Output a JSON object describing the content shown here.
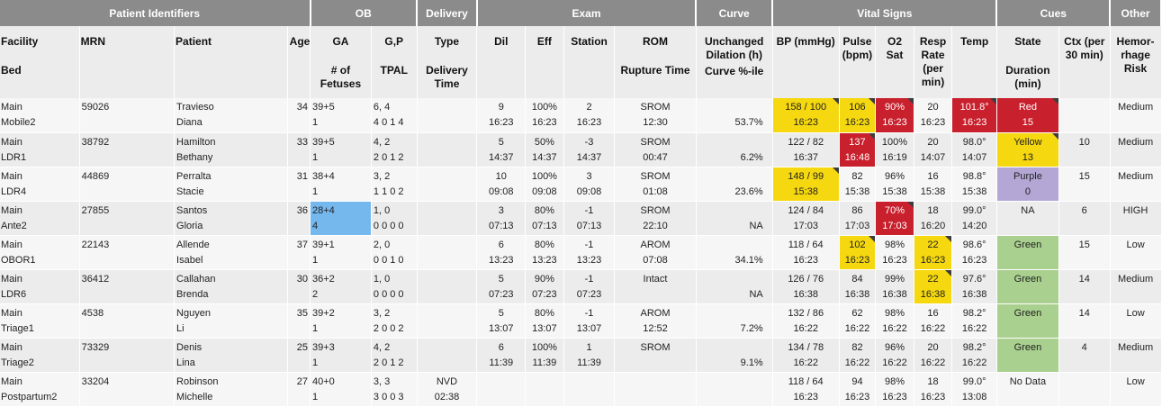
{
  "groups": [
    {
      "label": "Patient Identifiers"
    },
    {
      "label": "OB"
    },
    {
      "label": "Delivery"
    },
    {
      "label": "Exam"
    },
    {
      "label": "Curve"
    },
    {
      "label": "Vital Signs"
    },
    {
      "label": "Cues"
    },
    {
      "label": "Other"
    }
  ],
  "columns": {
    "facility": {
      "line1": "Facility",
      "line2": "Bed"
    },
    "mrn": {
      "line1": "MRN"
    },
    "patient": {
      "line1": "Patient"
    },
    "age": {
      "line1": "Age"
    },
    "ga": {
      "line1": "GA",
      "line2": "# of Fetuses"
    },
    "gp": {
      "line1": "G,P",
      "line2": "TPAL"
    },
    "type": {
      "line1": "Type",
      "line2": "Delivery Time"
    },
    "dil": {
      "line1": "Dil"
    },
    "eff": {
      "line1": "Eff"
    },
    "station": {
      "line1": "Station"
    },
    "rom": {
      "line1": "ROM",
      "line2": "Rupture Time"
    },
    "curve": {
      "line1": "Unchanged Dilation (h)",
      "line2": "Curve %-ile"
    },
    "bp": {
      "line1": "BP (mmHg)"
    },
    "pulse": {
      "line1": "Pulse (bpm)"
    },
    "o2": {
      "line1": "O2 Sat"
    },
    "resp": {
      "line1": "Resp Rate (per min)"
    },
    "temp": {
      "line1": "Temp"
    },
    "state": {
      "line1": "State",
      "line2": "Duration (min)"
    },
    "ctx": {
      "line1": "Ctx (per 30 min)"
    },
    "hemo": {
      "line1": "Hemor-rhage Risk"
    }
  },
  "patients": [
    {
      "facility": "Main",
      "bed": "Mobile2",
      "mrn": "59026",
      "last": "Travieso",
      "first": "Diana",
      "age": "34",
      "ga": "39+5",
      "fetuses": "1",
      "gp": "6, 4",
      "tpal": "4 0 1 4",
      "type": "",
      "delivery_time": "",
      "dil": "9",
      "dil_time": "16:23",
      "eff": "100%",
      "eff_time": "16:23",
      "station": "2",
      "station_time": "16:23",
      "rom": "SROM",
      "rom_time": "12:30",
      "unchanged": "",
      "curve": "53.7%",
      "bp": "158 / 100",
      "bp_time": "16:23",
      "pulse": "106",
      "pulse_time": "16:23",
      "o2": "90%",
      "o2_time": "16:23",
      "resp": "20",
      "resp_time": "16:23",
      "temp": "101.8°",
      "temp_time": "16:23",
      "state": "Red",
      "duration": "15",
      "ctx": "",
      "hemo": "Medium"
    },
    {
      "facility": "Main",
      "bed": "LDR1",
      "mrn": "38792",
      "last": "Hamilton",
      "first": "Bethany",
      "age": "33",
      "ga": "39+5",
      "fetuses": "1",
      "gp": "4, 2",
      "tpal": "2 0 1 2",
      "type": "",
      "delivery_time": "",
      "dil": "5",
      "dil_time": "14:37",
      "eff": "50%",
      "eff_time": "14:37",
      "station": "-3",
      "station_time": "14:37",
      "rom": "SROM",
      "rom_time": "00:47",
      "unchanged": "",
      "curve": "6.2%",
      "bp": "122 / 82",
      "bp_time": "16:37",
      "pulse": "137",
      "pulse_time": "16:48",
      "o2": "100%",
      "o2_time": "16:19",
      "resp": "20",
      "resp_time": "14:07",
      "temp": "98.0°",
      "temp_time": "14:07",
      "state": "Yellow",
      "duration": "13",
      "ctx": "10",
      "hemo": "Medium"
    },
    {
      "facility": "Main",
      "bed": "LDR4",
      "mrn": "44869",
      "last": "Perralta",
      "first": "Stacie",
      "age": "31",
      "ga": "38+4",
      "fetuses": "1",
      "gp": "3, 2",
      "tpal": "1 1 0 2",
      "type": "",
      "delivery_time": "",
      "dil": "10",
      "dil_time": "09:08",
      "eff": "100%",
      "eff_time": "09:08",
      "station": "3",
      "station_time": "09:08",
      "rom": "SROM",
      "rom_time": "01:08",
      "unchanged": "",
      "curve": "23.6%",
      "bp": "148 / 99",
      "bp_time": "15:38",
      "pulse": "82",
      "pulse_time": "15:38",
      "o2": "96%",
      "o2_time": "15:38",
      "resp": "16",
      "resp_time": "15:38",
      "temp": "98.8°",
      "temp_time": "15:38",
      "state": "Purple",
      "duration": "0",
      "ctx": "15",
      "hemo": "Medium"
    },
    {
      "facility": "Main",
      "bed": "Ante2",
      "mrn": "27855",
      "last": "Santos",
      "first": "Gloria",
      "age": "36",
      "ga": "28+4",
      "fetuses": "4",
      "gp": "1, 0",
      "tpal": "0 0 0 0",
      "type": "",
      "delivery_time": "",
      "dil": "3",
      "dil_time": "07:13",
      "eff": "80%",
      "eff_time": "07:13",
      "station": "-1",
      "station_time": "07:13",
      "rom": "SROM",
      "rom_time": "22:10",
      "unchanged": "",
      "curve": "NA",
      "bp": "124 / 84",
      "bp_time": "17:03",
      "pulse": "86",
      "pulse_time": "17:03",
      "o2": "70%",
      "o2_time": "17:03",
      "resp": "18",
      "resp_time": "16:20",
      "temp": "99.0°",
      "temp_time": "14:20",
      "state": "NA",
      "duration": "",
      "ctx": "6",
      "hemo": "HIGH"
    },
    {
      "facility": "Main",
      "bed": "OBOR1",
      "mrn": "22143",
      "last": "Allende",
      "first": "Isabel",
      "age": "37",
      "ga": "39+1",
      "fetuses": "1",
      "gp": "2, 0",
      "tpal": "0 0 1 0",
      "type": "",
      "delivery_time": "",
      "dil": "6",
      "dil_time": "13:23",
      "eff": "80%",
      "eff_time": "13:23",
      "station": "-1",
      "station_time": "13:23",
      "rom": "AROM",
      "rom_time": "07:08",
      "unchanged": "",
      "curve": "34.1%",
      "bp": "118 / 64",
      "bp_time": "16:23",
      "pulse": "102",
      "pulse_time": "16:23",
      "o2": "98%",
      "o2_time": "16:23",
      "resp": "22",
      "resp_time": "16:23",
      "temp": "98.6°",
      "temp_time": "16:23",
      "state": "Green",
      "duration": "",
      "ctx": "15",
      "hemo": "Low"
    },
    {
      "facility": "Main",
      "bed": "LDR6",
      "mrn": "36412",
      "last": "Callahan",
      "first": "Brenda",
      "age": "30",
      "ga": "36+2",
      "fetuses": "2",
      "gp": "1, 0",
      "tpal": "0 0 0 0",
      "type": "",
      "delivery_time": "",
      "dil": "5",
      "dil_time": "07:23",
      "eff": "90%",
      "eff_time": "07:23",
      "station": "-1",
      "station_time": "07:23",
      "rom": "Intact",
      "rom_time": "",
      "unchanged": "",
      "curve": "NA",
      "bp": "126 / 76",
      "bp_time": "16:38",
      "pulse": "84",
      "pulse_time": "16:38",
      "o2": "99%",
      "o2_time": "16:38",
      "resp": "22",
      "resp_time": "16:38",
      "temp": "97.6°",
      "temp_time": "16:38",
      "state": "Green",
      "duration": "",
      "ctx": "14",
      "hemo": "Medium"
    },
    {
      "facility": "Main",
      "bed": "Triage1",
      "mrn": "4538",
      "last": "Nguyen",
      "first": "Li",
      "age": "35",
      "ga": "39+2",
      "fetuses": "1",
      "gp": "3, 2",
      "tpal": "2 0 0 2",
      "type": "",
      "delivery_time": "",
      "dil": "5",
      "dil_time": "13:07",
      "eff": "80%",
      "eff_time": "13:07",
      "station": "-1",
      "station_time": "13:07",
      "rom": "AROM",
      "rom_time": "12:52",
      "unchanged": "",
      "curve": "7.2%",
      "bp": "132 / 86",
      "bp_time": "16:22",
      "pulse": "62",
      "pulse_time": "16:22",
      "o2": "98%",
      "o2_time": "16:22",
      "resp": "16",
      "resp_time": "16:22",
      "temp": "98.2°",
      "temp_time": "16:22",
      "state": "Green",
      "duration": "",
      "ctx": "14",
      "hemo": "Low"
    },
    {
      "facility": "Main",
      "bed": "Triage2",
      "mrn": "73329",
      "last": "Denis",
      "first": "Lina",
      "age": "25",
      "ga": "39+3",
      "fetuses": "1",
      "gp": "4, 2",
      "tpal": "2 0 1 2",
      "type": "",
      "delivery_time": "",
      "dil": "6",
      "dil_time": "11:39",
      "eff": "100%",
      "eff_time": "11:39",
      "station": "1",
      "station_time": "11:39",
      "rom": "SROM",
      "rom_time": "",
      "unchanged": "",
      "curve": "9.1%",
      "bp": "134 / 78",
      "bp_time": "16:22",
      "pulse": "82",
      "pulse_time": "16:22",
      "o2": "96%",
      "o2_time": "16:22",
      "resp": "20",
      "resp_time": "16:22",
      "temp": "98.2°",
      "temp_time": "16:22",
      "state": "Green",
      "duration": "",
      "ctx": "4",
      "hemo": "Medium"
    },
    {
      "facility": "Main",
      "bed": "Postpartum2",
      "mrn": "33204",
      "last": "Robinson",
      "first": "Michelle",
      "age": "27",
      "ga": "40+0",
      "fetuses": "1",
      "gp": "3, 3",
      "tpal": "3 0 0 3",
      "type": "NVD",
      "delivery_time": "02:38",
      "dil": "",
      "dil_time": "",
      "eff": "",
      "eff_time": "",
      "station": "",
      "station_time": "",
      "rom": "",
      "rom_time": "",
      "unchanged": "",
      "curve": "",
      "bp": "118 / 64",
      "bp_time": "16:23",
      "pulse": "94",
      "pulse_time": "16:23",
      "o2": "98%",
      "o2_time": "16:23",
      "resp": "18",
      "resp_time": "16:23",
      "temp": "99.0°",
      "temp_time": "13:08",
      "state": "No Data",
      "duration": "",
      "ctx": "",
      "hemo": "Low"
    }
  ],
  "flags": [
    {
      "bp": "yellow",
      "pulse": "yellow",
      "o2": "red",
      "temp": "red",
      "state": "red"
    },
    {
      "pulse": "red",
      "state": "yellow"
    },
    {
      "bp": "yellow",
      "state": "purple"
    },
    {
      "ga": "blue",
      "o2": "red"
    },
    {
      "pulse": "yellow",
      "resp": "yellow",
      "state": "green"
    },
    {
      "resp": "yellow",
      "state": "green"
    },
    {
      "state": "green"
    },
    {
      "state": "green"
    },
    {}
  ],
  "colors": {
    "header_group_bg": "#8b8b8b",
    "header_col_bg": "#ececec",
    "row_odd_bg": "#f6f6f6",
    "row_even_bg": "#ececec",
    "flag_yellow": "#f5d80f",
    "flag_red": "#c8202c",
    "flag_blue": "#75b8ee",
    "flag_green": "#a9d08e",
    "flag_purple": "#b4a7d6"
  }
}
